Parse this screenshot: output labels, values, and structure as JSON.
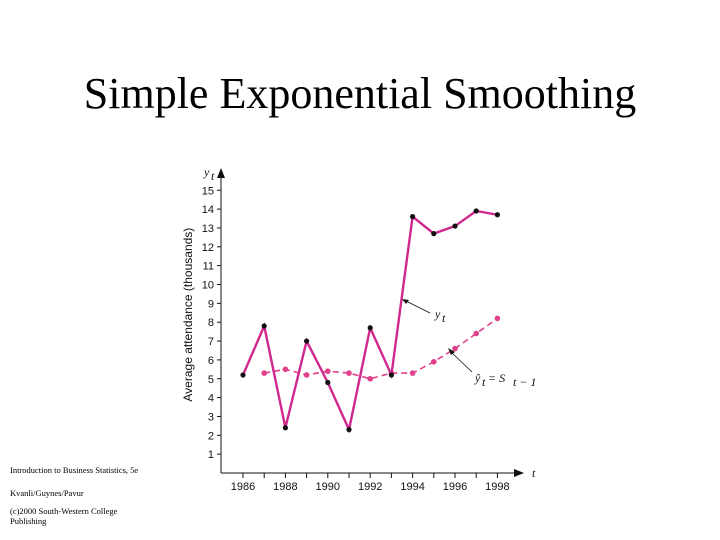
{
  "slide": {
    "title": "Simple Exponential Smoothing",
    "footer_lines": [
      "Introduction to Business Statistics, 5e",
      "Kvanli/Guynes/Pavur",
      "(c)2000 South-Western College",
      "Publishing"
    ]
  },
  "colors": {
    "actual_series": "#d0288e",
    "smoothed_series": "#e0408c",
    "markers": "#111111",
    "axis": "#111111",
    "gridline": "#cccccc"
  },
  "chart_data": {
    "type": "line",
    "xlabel": "t",
    "ylabel": "Average attendance (thousands)",
    "y_axis_symbol": "yt",
    "xlim": [
      1985.3,
      1998.8
    ],
    "ylim": [
      0,
      16
    ],
    "x_ticks": [
      1986,
      1988,
      1990,
      1992,
      1994,
      1996,
      1998
    ],
    "y_ticks": [
      1,
      2,
      3,
      4,
      5,
      6,
      7,
      8,
      9,
      10,
      11,
      12,
      13,
      14,
      15
    ],
    "grid": false,
    "series": [
      {
        "label_prefix": "y",
        "label_sub": "t",
        "style": "solid",
        "x": [
          1986,
          1987,
          1988,
          1989,
          1990,
          1991,
          1992,
          1993,
          1994,
          1995,
          1996,
          1997,
          1998
        ],
        "values": [
          5.2,
          7.8,
          2.4,
          7.0,
          4.8,
          2.3,
          7.7,
          5.2,
          13.6,
          12.7,
          13.1,
          13.9,
          13.7
        ]
      },
      {
        "label_prefix": "ŷ",
        "label_sub": "t",
        "label_eq": " = S",
        "label_eq_sub": "t − 1",
        "style": "dashed",
        "x": [
          1987,
          1988,
          1989,
          1990,
          1991,
          1992,
          1993,
          1994,
          1995,
          1996,
          1997,
          1998
        ],
        "values": [
          5.3,
          5.5,
          5.2,
          5.4,
          5.3,
          5.0,
          5.3,
          5.3,
          5.9,
          6.6,
          7.4,
          8.2
        ]
      }
    ]
  }
}
